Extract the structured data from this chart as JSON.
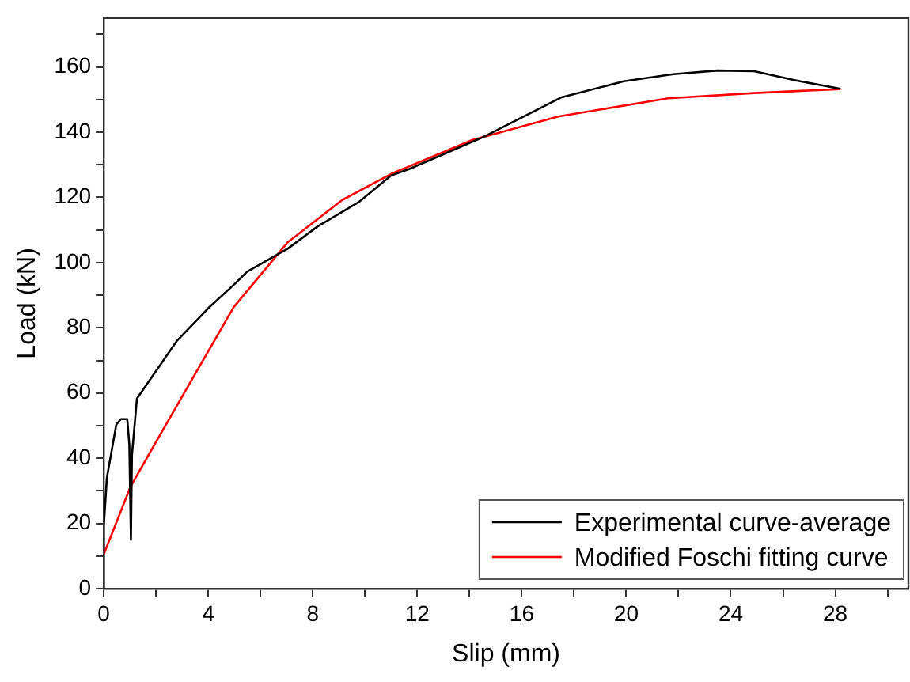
{
  "chart_data": {
    "type": "line",
    "xlabel": "Slip (mm)",
    "ylabel": "Load (kN)",
    "xlim": [
      0,
      30.8
    ],
    "ylim": [
      0,
      175
    ],
    "xticks": [
      0,
      {
        "value": 2,
        "label": null
      },
      4,
      {
        "value": 6,
        "label": null
      },
      8,
      {
        "value": 10,
        "label": null
      },
      12,
      {
        "value": 14,
        "label": null
      },
      16,
      {
        "value": 18,
        "label": null
      },
      20,
      {
        "value": 22,
        "label": null
      },
      24,
      {
        "value": 26,
        "label": null
      },
      28,
      {
        "value": 30,
        "label": null
      }
    ],
    "yticks": [
      0,
      {
        "value": 10,
        "label": null
      },
      20,
      {
        "value": 30,
        "label": null
      },
      40,
      {
        "value": 50,
        "label": null
      },
      60,
      {
        "value": 70,
        "label": null
      },
      80,
      {
        "value": 90,
        "label": null
      },
      100,
      {
        "value": 110,
        "label": null
      },
      120,
      {
        "value": 130,
        "label": null
      },
      140,
      {
        "value": 150,
        "label": null
      },
      160,
      {
        "value": 170,
        "label": null
      }
    ],
    "grid": false,
    "legend": "bottom right",
    "marker": "none",
    "line_style": "solid",
    "series": [
      {
        "name": "Experimental curve-average",
        "color": "#000000",
        "x": [
          0,
          0,
          0.12,
          0.48,
          0.65,
          0.9,
          0.98,
          1.04,
          1.08,
          1.27,
          2.79,
          4,
          4.98,
          5.49,
          7.05,
          8.19,
          9.75,
          11,
          11.72,
          14.5,
          17.5,
          19.9,
          21.8,
          23.5,
          24.9,
          26.4,
          28.2
        ],
        "values": [
          0,
          19,
          34,
          50.3,
          52,
          52,
          44,
          15,
          41,
          58.3,
          75.9,
          86,
          93.2,
          97.2,
          104.3,
          111.1,
          118.5,
          126.7,
          128.8,
          138.4,
          150.6,
          155.6,
          157.8,
          158.9,
          158.7,
          156,
          153.3
        ]
      },
      {
        "name": "Modified Foschi fitting curve",
        "color": "#ff0000",
        "x": [
          0,
          1.02,
          2,
          3.43,
          4.97,
          7.05,
          9.13,
          11,
          14.1,
          17.4,
          21.6,
          24.9,
          28.2
        ],
        "values": [
          10.5,
          31.2,
          45,
          64.9,
          86.3,
          106.3,
          119.2,
          127.2,
          137.6,
          144.8,
          150.4,
          152,
          153.2
        ]
      }
    ]
  }
}
